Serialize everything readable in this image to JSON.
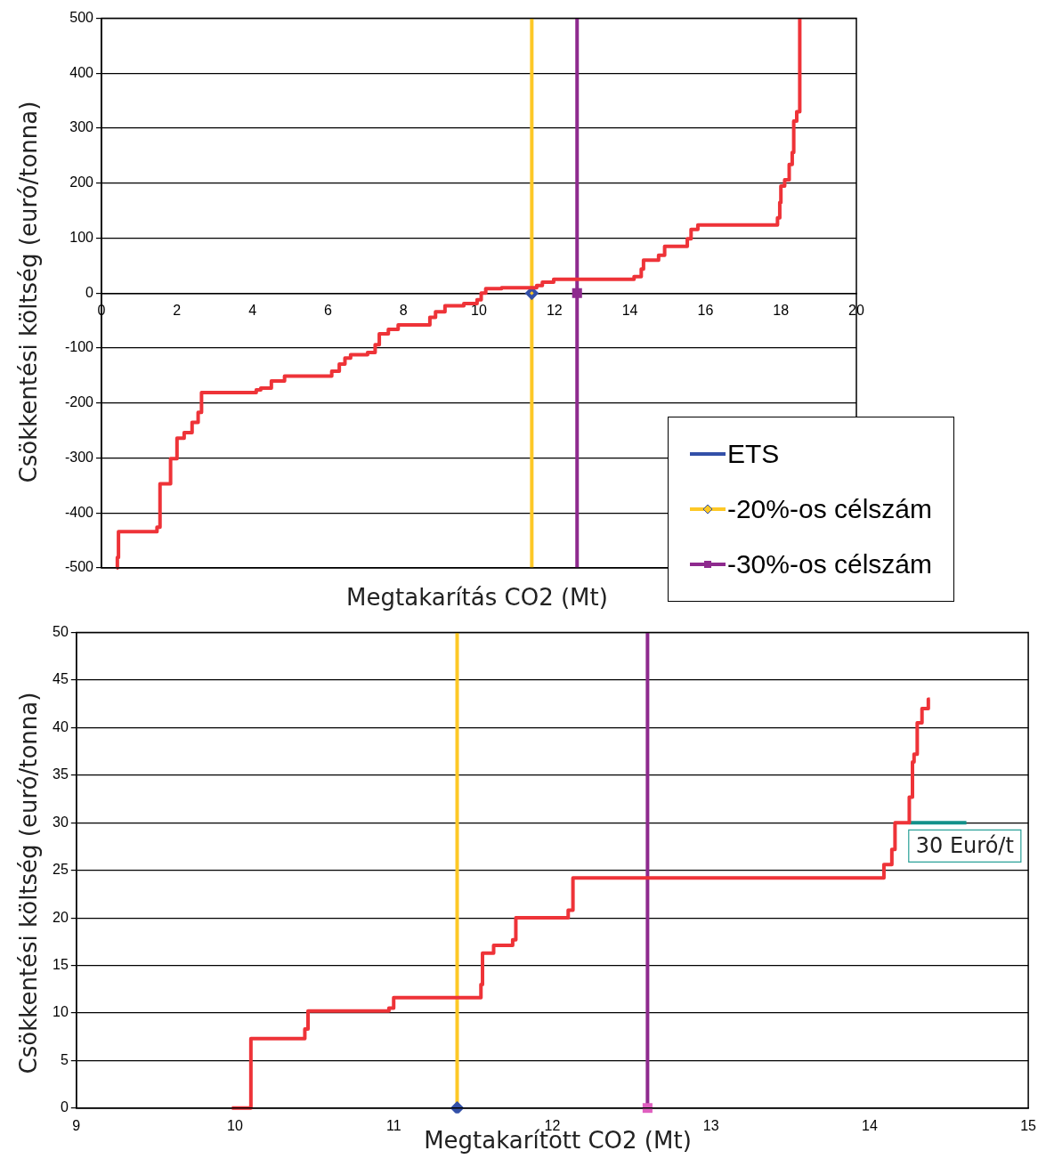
{
  "chart_data": [
    {
      "type": "step",
      "xlabel": "Megtakarítás CO2 (Mt)",
      "ylabel": "Csökkentési költség (euró/tonna)",
      "xlim": [
        0,
        20
      ],
      "xticks": [
        0,
        2,
        4,
        6,
        8,
        10,
        12,
        14,
        16,
        18,
        20
      ],
      "ylim": [
        -500,
        500
      ],
      "yticks": [
        -500,
        -400,
        -300,
        -200,
        -100,
        0,
        100,
        200,
        300,
        400,
        500
      ],
      "grid": "y",
      "legend": "bottom right",
      "ref_lines": [
        {
          "axis": "x",
          "value": 11.4,
          "color": "#fdc826"
        },
        {
          "axis": "x",
          "value": 12.6,
          "color": "#8e2a8e"
        }
      ],
      "series": [
        {
          "color": "#ee3338",
          "x": [
            0.4,
            0.42,
            0.45,
            1.47,
            1.55,
            1.83,
            2.0,
            2.19,
            2.4,
            2.56,
            2.65,
            4.1,
            4.22,
            4.5,
            4.85,
            6.1,
            6.3,
            6.45,
            6.6,
            7.05,
            7.25,
            7.36,
            7.6,
            7.86,
            8.7,
            8.85,
            9.1,
            9.6,
            9.95,
            10.06,
            10.18,
            10.6,
            11.53,
            11.68,
            11.98,
            14.11,
            14.3,
            14.36,
            14.76,
            14.92,
            15.52,
            15.62,
            15.8,
            17.91,
            17.97,
            18.0,
            18.1,
            18.22,
            18.3,
            18.34,
            18.42,
            18.5
          ],
          "values": [
            -500,
            -481,
            -434,
            -426,
            -347,
            -301,
            -264,
            -254,
            -235,
            -217,
            -181,
            -176,
            -173,
            -160,
            -151,
            -142,
            -129,
            -118,
            -112,
            -108,
            -94,
            -74,
            -66,
            -58,
            -44,
            -34,
            -23,
            -19,
            -12,
            0,
            8,
            10,
            14,
            20,
            25,
            30,
            44,
            60,
            69,
            85,
            99,
            116,
            124,
            137,
            165,
            195,
            206,
            234,
            256,
            313,
            330,
            500
          ]
        },
        {
          "name": "ETS",
          "type": "line",
          "color": "#3350a8"
        },
        {
          "name": "-20%-os célszám",
          "type": "line",
          "color": "#fdc826",
          "marker": "diamond",
          "x": [
            11.4
          ],
          "values": [
            0
          ]
        },
        {
          "name": "-30%-os célszám",
          "type": "line",
          "color": "#8e2a8e",
          "marker": "square",
          "x": [
            12.6
          ],
          "values": [
            0
          ]
        }
      ]
    },
    {
      "type": "step",
      "xlabel": "Megtakarított CO2 (Mt)",
      "ylabel": "Csökkentési költség (euró/tonna)",
      "xlim": [
        9,
        15
      ],
      "xticks": [
        9,
        10,
        11,
        12,
        13,
        14,
        15
      ],
      "ylim": [
        0,
        50
      ],
      "yticks": [
        0,
        5,
        10,
        15,
        20,
        25,
        30,
        35,
        40,
        45,
        50
      ],
      "grid": "y",
      "annotations": [
        {
          "text": "30 Euró/t",
          "x": 14.6,
          "y": 30
        }
      ],
      "ref_lines": [
        {
          "axis": "x",
          "value": 11.4,
          "color": "#fdc826"
        },
        {
          "axis": "x",
          "value": 12.6,
          "color": "#8e2a8e"
        }
      ],
      "series": [
        {
          "color": "#ee3338",
          "x": [
            9.98,
            10.1,
            10.44,
            10.46,
            10.97,
            11.0,
            11.55,
            11.56,
            11.63,
            11.75,
            11.77,
            12.1,
            12.13,
            14.09,
            14.14,
            14.16,
            14.25,
            14.27,
            14.28,
            14.3,
            14.33,
            14.37,
            14.38
          ],
          "values": [
            0,
            7.3,
            8.3,
            10.2,
            10.5,
            11.6,
            13,
            16.3,
            17.1,
            17.7,
            20,
            20.8,
            24.2,
            25.6,
            27.2,
            30,
            32.7,
            36.4,
            37.2,
            40.5,
            42,
            43,
            43
          ]
        },
        {
          "type": "line",
          "color": "#13918a",
          "x": [
            14.25,
            14.61
          ],
          "values": [
            30,
            30
          ]
        },
        {
          "type": "line",
          "color": "#3350a8",
          "marker": "diamond",
          "x": [
            11.4
          ],
          "values": [
            0
          ]
        },
        {
          "type": "line",
          "color": "#e060c0",
          "marker": "square",
          "x": [
            12.6
          ],
          "values": [
            0
          ]
        }
      ]
    }
  ]
}
